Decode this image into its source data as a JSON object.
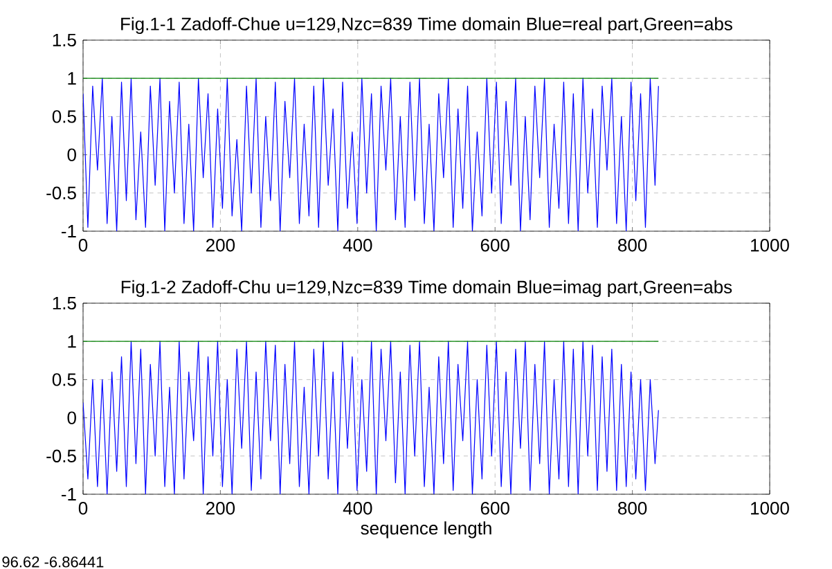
{
  "chart_data": [
    {
      "type": "line",
      "title": "Fig.1-1 Zadoff-Chue u=129,Nzc=839 Time domain Blue=real part,Green=abs",
      "xlim": [
        0,
        1000
      ],
      "xticks": [
        0,
        200,
        400,
        600,
        800,
        1000
      ],
      "ylim": [
        -1,
        1.5
      ],
      "yticks": [
        -1,
        -0.5,
        0,
        0.5,
        1,
        1.5
      ],
      "grid": true,
      "series": [
        {
          "color": "#0000ff",
          "x": [
            0,
            7,
            14,
            21,
            28,
            35,
            42,
            49,
            56,
            63,
            70,
            77,
            84,
            91,
            98,
            105,
            112,
            119,
            126,
            133,
            140,
            147,
            154,
            161,
            168,
            175,
            182,
            189,
            196,
            203,
            210,
            217,
            224,
            231,
            238,
            245,
            252,
            259,
            266,
            273,
            280,
            287,
            294,
            301,
            308,
            315,
            322,
            329,
            336,
            343,
            350,
            357,
            364,
            371,
            378,
            385,
            392,
            399,
            406,
            413,
            420,
            427,
            434,
            441,
            448,
            455,
            462,
            469,
            476,
            483,
            490,
            497,
            504,
            511,
            518,
            525,
            532,
            539,
            546,
            553,
            560,
            567,
            574,
            581,
            588,
            595,
            602,
            609,
            616,
            623,
            630,
            637,
            644,
            651,
            658,
            665,
            672,
            679,
            686,
            693,
            700,
            707,
            714,
            721,
            728,
            735,
            742,
            749,
            756,
            763,
            770,
            777,
            784,
            791,
            798,
            805,
            812,
            819,
            826,
            833,
            838
          ],
          "values": [
            0.8,
            -0.95,
            0.9,
            -0.2,
            1,
            -0.9,
            0.5,
            -1,
            0.95,
            -0.6,
            1,
            -0.85,
            0.3,
            -0.95,
            0.9,
            -0.4,
            1,
            -1,
            0.7,
            -0.5,
            0.95,
            -0.9,
            0.4,
            -1,
            1,
            -0.3,
            0.8,
            -0.95,
            0.6,
            -0.7,
            1,
            -0.8,
            0.2,
            -1,
            0.9,
            -0.5,
            1,
            -0.95,
            0.5,
            -0.6,
            0.95,
            -1,
            0.7,
            -0.3,
            1,
            -0.9,
            0.4,
            -0.8,
            0.9,
            -0.95,
            1,
            -0.4,
            0.6,
            -1,
            0.95,
            -0.7,
            0.3,
            -0.9,
            1,
            -0.5,
            0.8,
            -1,
            0.9,
            -0.2,
            1,
            -0.85,
            0.5,
            -0.95,
            0.95,
            -0.6,
            1,
            -0.9,
            0.4,
            -1,
            0.8,
            -0.3,
            1,
            -0.95,
            0.6,
            -0.7,
            0.9,
            -1,
            0.3,
            -0.8,
            1,
            -0.5,
            0.95,
            -0.9,
            0.7,
            -0.4,
            1,
            -1,
            0.5,
            -0.85,
            0.9,
            -0.3,
            1,
            -0.95,
            0.4,
            -0.7,
            0.95,
            -0.9,
            0.8,
            -1,
            1,
            -0.5,
            0.6,
            -0.95,
            0.9,
            -0.2,
            1,
            -0.9,
            0.5,
            -1,
            0.95,
            -0.6,
            0.8,
            -0.95,
            1,
            -0.4,
            0.9
          ]
        },
        {
          "color": "#008000",
          "x": [
            0,
            838
          ],
          "values": [
            1,
            1
          ]
        }
      ]
    },
    {
      "type": "line",
      "title": "Fig.1-2 Zadoff-Chu u=129,Nzc=839 Time domain Blue=imag part,Green=abs",
      "xlabel": "sequence length",
      "xlim": [
        0,
        1000
      ],
      "xticks": [
        0,
        200,
        400,
        600,
        800,
        1000
      ],
      "ylim": [
        -1,
        1.5
      ],
      "yticks": [
        -1,
        -0.5,
        0,
        0.5,
        1,
        1.5
      ],
      "grid": true,
      "annotations": [
        "96.62   -6.86441"
      ],
      "series": [
        {
          "color": "#0000ff",
          "x": [
            0,
            7,
            14,
            21,
            28,
            35,
            42,
            49,
            56,
            63,
            70,
            77,
            84,
            91,
            98,
            105,
            112,
            119,
            126,
            133,
            140,
            147,
            154,
            161,
            168,
            175,
            182,
            189,
            196,
            203,
            210,
            217,
            224,
            231,
            238,
            245,
            252,
            259,
            266,
            273,
            280,
            287,
            294,
            301,
            308,
            315,
            322,
            329,
            336,
            343,
            350,
            357,
            364,
            371,
            378,
            385,
            392,
            399,
            406,
            413,
            420,
            427,
            434,
            441,
            448,
            455,
            462,
            469,
            476,
            483,
            490,
            497,
            504,
            511,
            518,
            525,
            532,
            539,
            546,
            553,
            560,
            567,
            574,
            581,
            588,
            595,
            602,
            609,
            616,
            623,
            630,
            637,
            644,
            651,
            658,
            665,
            672,
            679,
            686,
            693,
            700,
            707,
            714,
            721,
            728,
            735,
            742,
            749,
            756,
            763,
            770,
            777,
            784,
            791,
            798,
            805,
            812,
            819,
            826,
            833,
            838
          ],
          "values": [
            0.2,
            -0.8,
            0.5,
            -0.9,
            0.5,
            -1,
            0.6,
            -0.7,
            0.8,
            -0.9,
            1,
            -0.6,
            0.9,
            -1,
            0.7,
            -0.5,
            1,
            -0.9,
            0.4,
            -1,
            1,
            -0.8,
            0.6,
            -0.3,
            1,
            -1,
            0.8,
            -0.5,
            1,
            -0.9,
            0.5,
            -1,
            0.9,
            -0.4,
            1,
            -0.95,
            0.6,
            -0.8,
            1,
            -0.3,
            0.95,
            -1,
            0.7,
            -0.6,
            1,
            -0.9,
            0.4,
            -1,
            0.9,
            -0.5,
            1,
            -0.8,
            0.6,
            -1,
            1,
            -0.4,
            0.8,
            -0.95,
            0.5,
            -0.7,
            1,
            -1,
            0.9,
            -0.3,
            1,
            -0.85,
            0.6,
            -1,
            0.95,
            -0.5,
            1,
            -0.9,
            0.4,
            -1,
            0.8,
            -0.6,
            1,
            -0.95,
            0.7,
            -0.3,
            1,
            -1,
            0.5,
            -0.8,
            0.95,
            -0.5,
            1,
            -0.9,
            0.6,
            -1,
            0.9,
            -0.4,
            1,
            -0.95,
            0.7,
            -0.6,
            1,
            -1,
            0.5,
            -0.8,
            1,
            -0.9,
            0.9,
            -1,
            1,
            -0.5,
            0.95,
            -0.95,
            0.8,
            -0.7,
            0.9,
            -0.95,
            0.7,
            -0.9,
            0.6,
            -0.8,
            0.5,
            -0.95,
            0.5,
            -0.6,
            0.1
          ]
        },
        {
          "color": "#008000",
          "x": [
            0,
            838
          ],
          "values": [
            1,
            1
          ]
        }
      ]
    }
  ]
}
